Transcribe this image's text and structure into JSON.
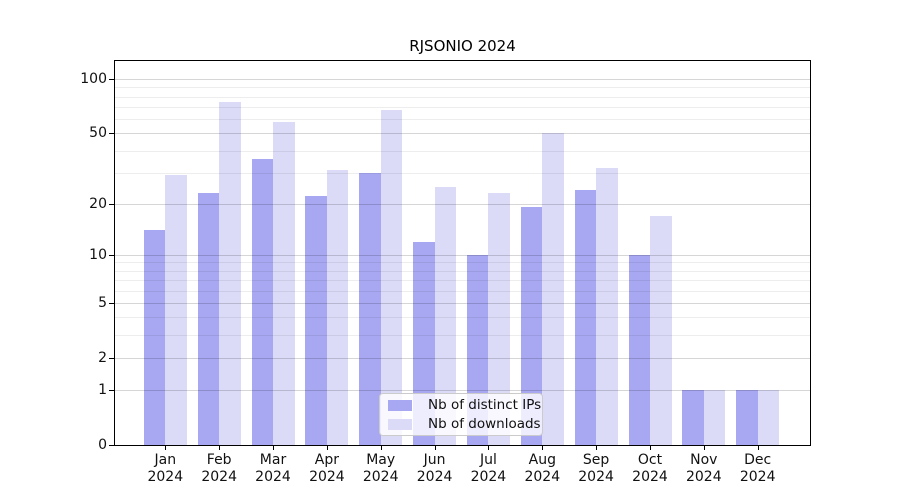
{
  "chart_data": {
    "type": "bar",
    "title": "RJSONIO 2024",
    "categories": [
      "Jan",
      "Feb",
      "Mar",
      "Apr",
      "May",
      "Jun",
      "Jul",
      "Aug",
      "Sep",
      "Oct",
      "Nov",
      "Dec"
    ],
    "x_year": "2024",
    "series": [
      {
        "name": "Nb of distinct IPs",
        "color": "#a7a7f2",
        "values": [
          14,
          23,
          36,
          22,
          30,
          12,
          10,
          19,
          24,
          10,
          1,
          1
        ]
      },
      {
        "name": "Nb of downloads",
        "color": "#dbdbf7",
        "values": [
          29,
          75,
          58,
          31,
          67,
          25,
          23,
          50,
          32,
          17,
          1,
          1
        ]
      }
    ],
    "y_axis": {
      "scale": "log1p",
      "ticks": [
        0,
        1,
        2,
        5,
        10,
        20,
        50,
        100
      ],
      "minor_gridlines": [
        3,
        4,
        6,
        7,
        8,
        9,
        30,
        40,
        60,
        70,
        80,
        90
      ],
      "max": 127
    },
    "legend_position": "lower center",
    "grid": true,
    "bar_edge_colors": {
      "frame": "#000000",
      "grid_minor": "#ededed",
      "grid_major": "#d6d6d6"
    }
  }
}
